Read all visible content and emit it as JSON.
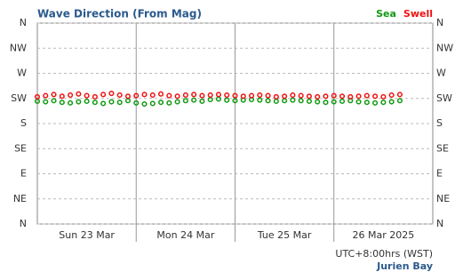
{
  "chart_data": {
    "type": "scatter",
    "title": "Wave Direction (From Mag)",
    "timezone": "UTC+8:00hrs (WST)",
    "location": "Jurien Bay",
    "x": [
      0,
      2,
      4,
      6,
      8,
      10,
      12,
      14,
      16,
      18,
      20,
      22,
      24,
      26,
      28,
      30,
      32,
      34,
      36,
      38,
      40,
      42,
      44,
      46,
      48,
      50,
      52,
      54,
      56,
      58,
      60,
      62,
      64,
      66,
      68,
      70,
      72,
      74,
      76,
      78,
      80,
      82,
      84,
      86,
      88
    ],
    "xlim": [
      0,
      96
    ],
    "xticks": [
      {
        "value": 12,
        "label": "Sun 23 Mar"
      },
      {
        "value": 36,
        "label": "Mon 24 Mar"
      },
      {
        "value": 60,
        "label": "Tue 25 Mar"
      },
      {
        "value": 84,
        "label": "26 Mar 2025"
      }
    ],
    "day_lines": [
      24,
      48,
      72
    ],
    "ylim": [
      0,
      360
    ],
    "yticks": [
      {
        "value": 0,
        "label": "N"
      },
      {
        "value": 45,
        "label": "NE"
      },
      {
        "value": 90,
        "label": "E"
      },
      {
        "value": 135,
        "label": "SE"
      },
      {
        "value": 180,
        "label": "S"
      },
      {
        "value": 225,
        "label": "SW"
      },
      {
        "value": 270,
        "label": "W"
      },
      {
        "value": 315,
        "label": "NW"
      },
      {
        "value": 360,
        "label": "N"
      }
    ],
    "grid": true,
    "series": [
      {
        "name": "Sea",
        "color": "#119911",
        "values": [
          220,
          219,
          221,
          218,
          217,
          219,
          220,
          218,
          216,
          219,
          218,
          221,
          217,
          215,
          216,
          218,
          217,
          219,
          221,
          222,
          220,
          223,
          224,
          222,
          221,
          222,
          223,
          222,
          221,
          220,
          221,
          222,
          221,
          220,
          219,
          218,
          219,
          220,
          221,
          219,
          218,
          217,
          218,
          219,
          221
        ]
      },
      {
        "name": "Swell",
        "color": "#ee1111",
        "values": [
          228,
          230,
          232,
          229,
          231,
          233,
          230,
          228,
          232,
          234,
          231,
          229,
          230,
          232,
          231,
          233,
          230,
          229,
          231,
          232,
          230,
          231,
          232,
          231,
          230,
          229,
          230,
          231,
          230,
          228,
          229,
          231,
          230,
          229,
          228,
          229,
          230,
          229,
          228,
          229,
          230,
          229,
          228,
          231,
          232
        ]
      }
    ]
  }
}
